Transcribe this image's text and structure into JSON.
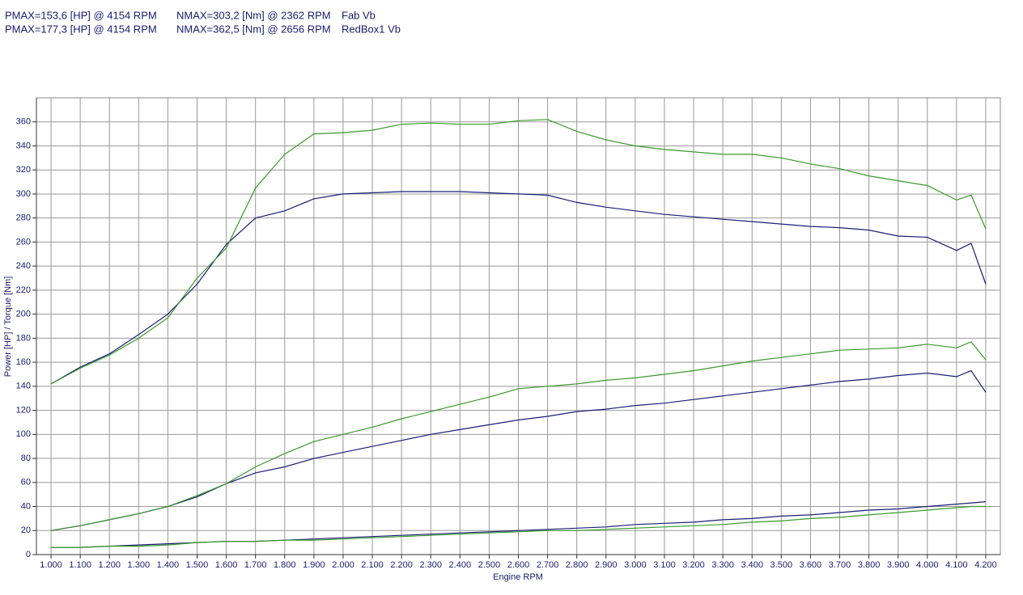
{
  "chart_data": {
    "type": "line",
    "x_label": "Engine RPM",
    "y_label": "Power [HP] / Torque [Nm]",
    "x": [
      1000,
      1100,
      1200,
      1300,
      1400,
      1500,
      1600,
      1700,
      1800,
      1900,
      2000,
      2100,
      2200,
      2300,
      2400,
      2500,
      2600,
      2700,
      2800,
      2900,
      3000,
      3100,
      3200,
      3300,
      3400,
      3500,
      3600,
      3700,
      3800,
      3900,
      4000,
      4100,
      4150,
      4200
    ],
    "xlim": [
      950,
      4250
    ],
    "xticks": [
      {
        "value": 1000,
        "label": "1.000"
      },
      {
        "value": 1100,
        "label": "1.100"
      },
      {
        "value": 1200,
        "label": "1.200"
      },
      {
        "value": 1300,
        "label": "1.300"
      },
      {
        "value": 1400,
        "label": "1.400"
      },
      {
        "value": 1500,
        "label": "1.500"
      },
      {
        "value": 1600,
        "label": "1.600"
      },
      {
        "value": 1700,
        "label": "1.700"
      },
      {
        "value": 1800,
        "label": "1.800"
      },
      {
        "value": 1900,
        "label": "1.900"
      },
      {
        "value": 2000,
        "label": "2.000"
      },
      {
        "value": 2100,
        "label": "2.100"
      },
      {
        "value": 2200,
        "label": "2.200"
      },
      {
        "value": 2300,
        "label": "2.300"
      },
      {
        "value": 2400,
        "label": "2.400"
      },
      {
        "value": 2500,
        "label": "2.500"
      },
      {
        "value": 2600,
        "label": "2.600"
      },
      {
        "value": 2700,
        "label": "2.700"
      },
      {
        "value": 2800,
        "label": "2.800"
      },
      {
        "value": 2900,
        "label": "2.900"
      },
      {
        "value": 3000,
        "label": "3.000"
      },
      {
        "value": 3100,
        "label": "3.100"
      },
      {
        "value": 3200,
        "label": "3.200"
      },
      {
        "value": 3300,
        "label": "3.300"
      },
      {
        "value": 3400,
        "label": "3.400"
      },
      {
        "value": 3500,
        "label": "3.500"
      },
      {
        "value": 3600,
        "label": "3.600"
      },
      {
        "value": 3700,
        "label": "3.700"
      },
      {
        "value": 3800,
        "label": "3.800"
      },
      {
        "value": 3900,
        "label": "3.900"
      },
      {
        "value": 4000,
        "label": "4.000"
      },
      {
        "value": 4100,
        "label": "4.100"
      },
      {
        "value": 4200,
        "label": "4.200"
      }
    ],
    "ylim": [
      0,
      380
    ],
    "yticks": [
      0,
      20,
      40,
      60,
      80,
      100,
      120,
      140,
      160,
      180,
      200,
      220,
      240,
      260,
      280,
      300,
      320,
      340,
      360
    ],
    "grid": true,
    "runs": [
      {
        "name": "Fab Vb",
        "pmax": "PMAX=153,6 [HP] @ 4154 RPM",
        "nmax": "NMAX=303,2 [Nm] @ 2362 RPM",
        "color": "#1c1c78",
        "torque": [
          142,
          156,
          167,
          183,
          200,
          225,
          258,
          280,
          286,
          296,
          300,
          301,
          302,
          302,
          302,
          301,
          300,
          299,
          293,
          289,
          286,
          283,
          281,
          279,
          277,
          275,
          273,
          272,
          270,
          265,
          264,
          253,
          259,
          225
        ],
        "power": [
          20,
          24,
          29,
          34,
          40,
          48,
          59,
          68,
          73,
          80,
          85,
          90,
          95,
          100,
          104,
          108,
          112,
          115,
          119,
          121,
          124,
          126,
          129,
          132,
          135,
          138,
          141,
          144,
          146,
          149,
          151,
          148,
          153,
          135
        ],
        "loss": [
          6,
          6,
          7,
          8,
          9,
          10,
          11,
          11,
          12,
          13,
          14,
          15,
          16,
          17,
          18,
          19,
          20,
          21,
          22,
          23,
          25,
          26,
          27,
          29,
          30,
          32,
          33,
          35,
          37,
          38,
          40,
          42,
          43,
          44
        ]
      },
      {
        "name": "RedBox1 Vb",
        "pmax": "PMAX=177,3 [HP] @ 4154 RPM",
        "nmax": "NMAX=362,5 [Nm] @ 2656 RPM",
        "color": "#3a9a2a",
        "torque": [
          142,
          155,
          166,
          180,
          197,
          230,
          255,
          305,
          333,
          350,
          351,
          353,
          358,
          359,
          358,
          358,
          361,
          362,
          352,
          345,
          340,
          337,
          335,
          333,
          333,
          330,
          325,
          321,
          315,
          311,
          307,
          295,
          299,
          271
        ],
        "power": [
          20,
          24,
          29,
          34,
          40,
          49,
          59,
          73,
          84,
          94,
          100,
          106,
          113,
          119,
          125,
          131,
          138,
          140,
          142,
          145,
          147,
          150,
          153,
          157,
          161,
          164,
          167,
          170,
          171,
          172,
          175,
          172,
          177,
          162
        ],
        "loss": [
          6,
          6,
          7,
          7,
          8,
          10,
          11,
          11,
          12,
          12,
          13,
          14,
          15,
          16,
          17,
          18,
          19,
          20,
          20,
          21,
          22,
          23,
          24,
          25,
          27,
          28,
          30,
          31,
          33,
          35,
          37,
          39,
          40,
          40
        ]
      }
    ]
  }
}
